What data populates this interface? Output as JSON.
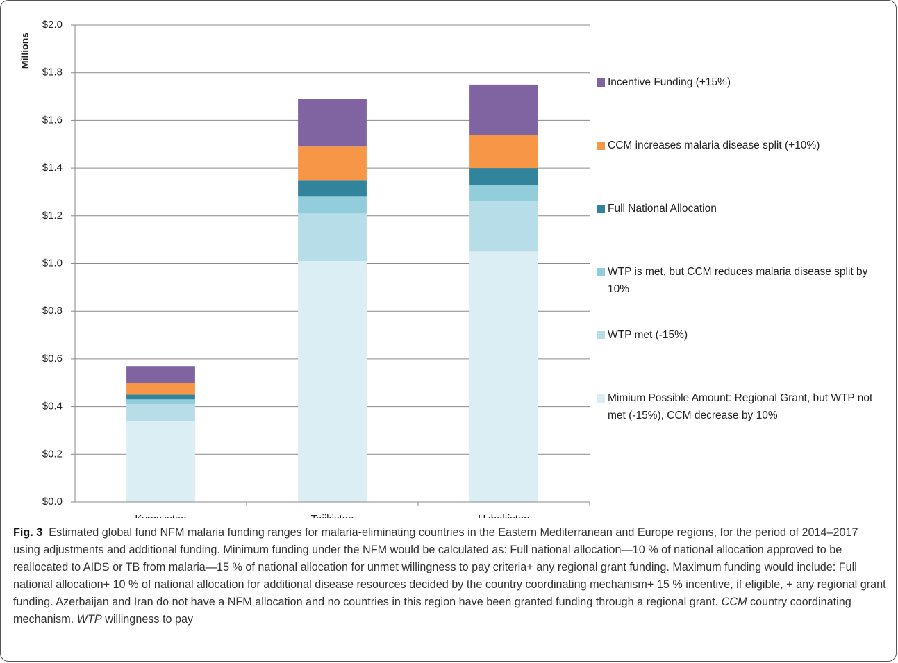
{
  "chart_data": {
    "type": "stacked_bar",
    "y_axis_label": "Millions",
    "categories": [
      "Kyrgyzstan",
      "Tajikistan",
      "Uzbekistan"
    ],
    "series": [
      {
        "name": "Mimium Possible Amount: Regional Grant, but WTP not met (-15%), CCM decrease by 10%",
        "color": "#dbeef3",
        "values": [
          0.34,
          1.01,
          1.05
        ]
      },
      {
        "name": "WTP met (-15%)",
        "color": "#b7dee8",
        "values": [
          0.07,
          0.2,
          0.21
        ]
      },
      {
        "name": "WTP is met, but CCM reduces malaria disease split by 10%",
        "color": "#92cddc",
        "values": [
          0.02,
          0.07,
          0.07
        ]
      },
      {
        "name": "Full National  Allocation",
        "color": "#31849b",
        "values": [
          0.02,
          0.07,
          0.07
        ]
      },
      {
        "name": "CCM increases malaria disease split (+10%)",
        "color": "#f79646",
        "values": [
          0.05,
          0.14,
          0.14
        ]
      },
      {
        "name": "Incentive Funding (+15%)",
        "color": "#8064a2",
        "values": [
          0.07,
          0.2,
          0.21
        ]
      }
    ],
    "ylim": [
      0,
      2
    ],
    "yticks": [
      {
        "value": 0,
        "label": "$0.0"
      },
      {
        "value": 0.2,
        "label": "$0.2"
      },
      {
        "value": 0.4,
        "label": "$0.4"
      },
      {
        "value": 0.6,
        "label": "$0.6"
      },
      {
        "value": 0.8,
        "label": "$0.8"
      },
      {
        "value": 1,
        "label": "$1.0"
      },
      {
        "value": 1.2,
        "label": "$1.2"
      },
      {
        "value": 1.4,
        "label": "$1.4"
      },
      {
        "value": 1.6,
        "label": "$1.6"
      },
      {
        "value": 1.8,
        "label": "$1.8"
      },
      {
        "value": 2,
        "label": "$2.0"
      }
    ],
    "grid": true,
    "legend": "right"
  },
  "caption": {
    "label": "Fig. 3",
    "parts": [
      "Estimated global fund NFM malaria funding ranges for malaria-eliminating countries in the Eastern Mediterranean and Europe regions, for the period of 2014–2017 using adjustments and additional funding. Minimum funding under the NFM would be calculated as: Full national allocation—10 % of national allocation approved to be reallocated to AIDS or TB from malaria—15 % of national allocation for unmet willingness to pay criteria+ any regional grant funding. Maximum funding would include: Full national allocation+ 10 % of national allocation for additional disease resources decided by the country coordinating mechanism+ 15 % incentive, if eligible, + any regional grant funding. Azerbaijan and Iran do not have a NFM allocation and no countries in this region have been granted funding through a regional grant. ",
      "CCM",
      " country coordinating mechanism. ",
      "WTP",
      " willingness to pay"
    ]
  }
}
